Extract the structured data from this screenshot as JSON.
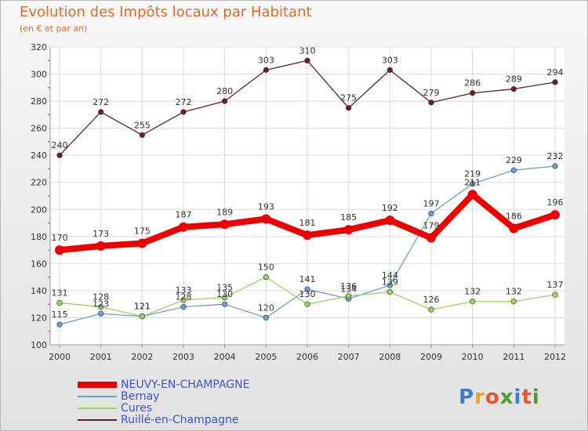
{
  "title": "Evolution des Impôts locaux par Habitant",
  "subtitle": "(en € et par an)",
  "brand": {
    "letters": [
      "P",
      "r",
      "o",
      "x",
      "i",
      "t",
      "i"
    ],
    "colors": [
      "#3a7fd0",
      "#f4a21a",
      "#e8542c",
      "#4aa02c",
      "#3a7fd0",
      "#e8542c",
      "#4aa02c"
    ]
  },
  "chart_data": {
    "type": "line",
    "title": "Evolution des Impôts locaux par Habitant",
    "subtitle": "(en € et par an)",
    "xlabel": "",
    "ylabel": "",
    "x": [
      "2000",
      "2001",
      "2002",
      "2003",
      "2004",
      "2005",
      "2006",
      "2007",
      "2008",
      "2009",
      "2010",
      "2011",
      "2012"
    ],
    "ylim": [
      100,
      320
    ],
    "yticks": [
      "100",
      "120",
      "140",
      "160",
      "180",
      "200",
      "220",
      "240",
      "260",
      "280",
      "300",
      "320"
    ],
    "grid": true,
    "legend_position": "bottom-left",
    "series": [
      {
        "name": "NEUVY-EN-CHAMPAGNE",
        "color": "#ee0000",
        "emphasis": true,
        "values": [
          170,
          173,
          175,
          187,
          189,
          193,
          181,
          185,
          192,
          179,
          211,
          186,
          196
        ]
      },
      {
        "name": "Bernay",
        "color": "#6a9fd3",
        "emphasis": false,
        "values": [
          115,
          123,
          121,
          128,
          130,
          120,
          141,
          134,
          144,
          197,
          219,
          229,
          232
        ]
      },
      {
        "name": "Cures",
        "color": "#96d75a",
        "emphasis": false,
        "values": [
          131,
          128,
          121,
          133,
          135,
          150,
          130,
          136,
          139,
          126,
          132,
          132,
          137
        ]
      },
      {
        "name": "Ruillé-en-Champagne",
        "color": "#6a1e1e",
        "emphasis": false,
        "values": [
          240,
          272,
          255,
          272,
          280,
          303,
          310,
          275,
          303,
          279,
          286,
          289,
          294
        ]
      }
    ]
  }
}
